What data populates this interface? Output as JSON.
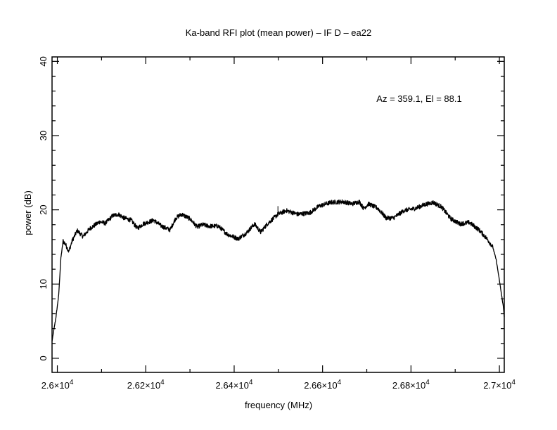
{
  "chart_data": {
    "type": "line",
    "title": "Ka-band RFI plot (mean power) – IF D – ea22",
    "annotation": "Az = 359.1, El = 88.1",
    "xlabel": "frequency (MHz)",
    "ylabel": "power (dB)",
    "xlim": [
      25988,
      27011
    ],
    "ylim": [
      -1.9,
      40.6
    ],
    "grid": false,
    "x_ticks": [
      {
        "value": 26000,
        "mantissa": "2.6×10",
        "exp": "4"
      },
      {
        "value": 26200,
        "mantissa": "2.62×10",
        "exp": "4"
      },
      {
        "value": 26400,
        "mantissa": "2.64×10",
        "exp": "4"
      },
      {
        "value": 26600,
        "mantissa": "2.66×10",
        "exp": "4"
      },
      {
        "value": 26800,
        "mantissa": "2.68×10",
        "exp": "4"
      },
      {
        "value": 27000,
        "mantissa": "2.7×10",
        "exp": "4"
      }
    ],
    "y_ticks": [
      {
        "value": 0,
        "label": "0"
      },
      {
        "value": 10,
        "label": "10"
      },
      {
        "value": 20,
        "label": "20"
      },
      {
        "value": 30,
        "label": "30"
      },
      {
        "value": 40,
        "label": "40"
      }
    ],
    "x_minor_step": 100,
    "y_minor_step": 2,
    "series": [
      {
        "name": "mean power",
        "color": "#000000",
        "x": [
          25988,
          25997,
          26003,
          26008,
          26013,
          26018,
          26026,
          26034,
          26045,
          26058,
          26074,
          26096,
          26109,
          26125,
          26138,
          26151,
          26167,
          26181,
          26194,
          26218,
          26236,
          26255,
          26268,
          26281,
          26300,
          26316,
          26329,
          26343,
          26364,
          26385,
          26409,
          26428,
          26446,
          26460,
          26475,
          26499,
          26518,
          26544,
          26571,
          26592,
          26619,
          26646,
          26667,
          26683,
          26693,
          26704,
          26725,
          26744,
          26760,
          26784,
          26810,
          26831,
          26850,
          26869,
          26890,
          26911,
          26932,
          26954,
          26972,
          26985,
          26993,
          27001,
          27009,
          27011
        ],
        "y": [
          2.3,
          5.6,
          8.5,
          13.5,
          15.8,
          15.4,
          14.4,
          15.9,
          17.2,
          16.4,
          17.5,
          18.4,
          18.2,
          19.2,
          19.4,
          18.9,
          18.6,
          17.5,
          18.1,
          18.6,
          17.8,
          17.3,
          18.9,
          19.4,
          18.8,
          17.7,
          18.0,
          17.8,
          17.8,
          16.7,
          16.1,
          16.9,
          18.1,
          17.0,
          18.1,
          19.4,
          19.9,
          19.4,
          19.6,
          20.5,
          21.0,
          21.1,
          20.8,
          21.1,
          20.2,
          20.8,
          20.2,
          18.9,
          18.9,
          19.9,
          20.2,
          20.7,
          21.0,
          20.4,
          18.8,
          18.1,
          18.3,
          17.3,
          16.1,
          15.0,
          13.2,
          10.1,
          6.9,
          5.6
        ]
      }
    ],
    "spikes": [
      {
        "x": 26499,
        "y": 20.5
      }
    ]
  }
}
